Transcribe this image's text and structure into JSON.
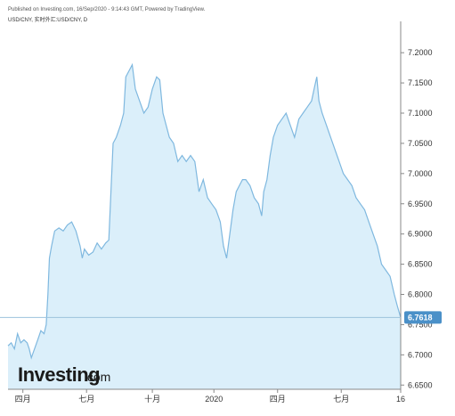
{
  "header": {
    "published": "Published on Investing.com, 16/Sep/2020 - 9:14:43 GMT, Powered by TradingView.",
    "symbol": "USD/CNY, 实时外汇:USD/CNY, D"
  },
  "logo": {
    "brand": "Investing",
    "domain": ".com"
  },
  "colors": {
    "line": "#7fb8df",
    "fill": "#dbeffa",
    "accent": "#4a90c8",
    "axis": "#888888"
  },
  "chart_data": {
    "type": "area",
    "title": "",
    "xlabel": "",
    "ylabel": "",
    "ylim": [
      6.643,
      7.243
    ],
    "current_value": "6.7618",
    "y_ticks": [
      "7.2000",
      "7.1500",
      "7.1000",
      "7.0500",
      "7.0000",
      "6.9500",
      "6.9000",
      "6.8500",
      "6.8000",
      "6.7500",
      "6.7000",
      "6.6500"
    ],
    "x_ticks": [
      "四月",
      "七月",
      "十月",
      "2020",
      "四月",
      "七月",
      "16"
    ],
    "x_tick_positions": [
      0.7,
      3.7,
      6.8,
      9.7,
      12.7,
      15.7,
      18.5
    ],
    "x_range": [
      0,
      18.5
    ],
    "series": [
      {
        "values": [
          [
            0.0,
            6.715
          ],
          [
            0.15,
            6.72
          ],
          [
            0.3,
            6.71
          ],
          [
            0.45,
            6.735
          ],
          [
            0.6,
            6.72
          ],
          [
            0.75,
            6.725
          ],
          [
            0.9,
            6.72
          ],
          [
            1.0,
            6.71
          ],
          [
            1.1,
            6.695
          ],
          [
            1.25,
            6.71
          ],
          [
            1.4,
            6.725
          ],
          [
            1.55,
            6.74
          ],
          [
            1.7,
            6.735
          ],
          [
            1.8,
            6.75
          ],
          [
            1.88,
            6.8
          ],
          [
            1.95,
            6.86
          ],
          [
            2.05,
            6.88
          ],
          [
            2.2,
            6.905
          ],
          [
            2.4,
            6.91
          ],
          [
            2.6,
            6.905
          ],
          [
            2.8,
            6.915
          ],
          [
            3.0,
            6.92
          ],
          [
            3.2,
            6.905
          ],
          [
            3.4,
            6.88
          ],
          [
            3.5,
            6.86
          ],
          [
            3.6,
            6.875
          ],
          [
            3.8,
            6.865
          ],
          [
            4.0,
            6.87
          ],
          [
            4.2,
            6.885
          ],
          [
            4.4,
            6.875
          ],
          [
            4.6,
            6.885
          ],
          [
            4.75,
            6.89
          ],
          [
            4.85,
            6.97
          ],
          [
            4.95,
            7.05
          ],
          [
            5.1,
            7.06
          ],
          [
            5.3,
            7.08
          ],
          [
            5.45,
            7.1
          ],
          [
            5.55,
            7.16
          ],
          [
            5.7,
            7.17
          ],
          [
            5.85,
            7.18
          ],
          [
            6.0,
            7.14
          ],
          [
            6.2,
            7.12
          ],
          [
            6.4,
            7.1
          ],
          [
            6.6,
            7.11
          ],
          [
            6.8,
            7.14
          ],
          [
            7.0,
            7.16
          ],
          [
            7.15,
            7.155
          ],
          [
            7.3,
            7.1
          ],
          [
            7.45,
            7.08
          ],
          [
            7.6,
            7.06
          ],
          [
            7.8,
            7.05
          ],
          [
            8.0,
            7.02
          ],
          [
            8.2,
            7.03
          ],
          [
            8.4,
            7.02
          ],
          [
            8.6,
            7.03
          ],
          [
            8.8,
            7.02
          ],
          [
            9.0,
            6.97
          ],
          [
            9.2,
            6.99
          ],
          [
            9.4,
            6.96
          ],
          [
            9.6,
            6.95
          ],
          [
            9.8,
            6.94
          ],
          [
            10.0,
            6.92
          ],
          [
            10.15,
            6.88
          ],
          [
            10.3,
            6.86
          ],
          [
            10.45,
            6.9
          ],
          [
            10.6,
            6.94
          ],
          [
            10.75,
            6.97
          ],
          [
            10.9,
            6.98
          ],
          [
            11.05,
            6.99
          ],
          [
            11.2,
            6.99
          ],
          [
            11.4,
            6.98
          ],
          [
            11.6,
            6.96
          ],
          [
            11.8,
            6.95
          ],
          [
            11.95,
            6.93
          ],
          [
            12.05,
            6.97
          ],
          [
            12.2,
            6.99
          ],
          [
            12.35,
            7.03
          ],
          [
            12.5,
            7.06
          ],
          [
            12.7,
            7.08
          ],
          [
            12.9,
            7.09
          ],
          [
            13.1,
            7.1
          ],
          [
            13.3,
            7.08
          ],
          [
            13.5,
            7.06
          ],
          [
            13.7,
            7.09
          ],
          [
            13.9,
            7.1
          ],
          [
            14.1,
            7.11
          ],
          [
            14.3,
            7.12
          ],
          [
            14.45,
            7.145
          ],
          [
            14.55,
            7.16
          ],
          [
            14.65,
            7.12
          ],
          [
            14.8,
            7.1
          ],
          [
            15.0,
            7.08
          ],
          [
            15.2,
            7.06
          ],
          [
            15.4,
            7.04
          ],
          [
            15.6,
            7.02
          ],
          [
            15.8,
            7.0
          ],
          [
            16.0,
            6.99
          ],
          [
            16.2,
            6.98
          ],
          [
            16.4,
            6.96
          ],
          [
            16.6,
            6.95
          ],
          [
            16.8,
            6.94
          ],
          [
            17.0,
            6.92
          ],
          [
            17.2,
            6.9
          ],
          [
            17.4,
            6.88
          ],
          [
            17.6,
            6.85
          ],
          [
            17.8,
            6.84
          ],
          [
            18.0,
            6.83
          ],
          [
            18.2,
            6.8
          ],
          [
            18.35,
            6.78
          ],
          [
            18.5,
            6.7618
          ]
        ]
      }
    ]
  }
}
